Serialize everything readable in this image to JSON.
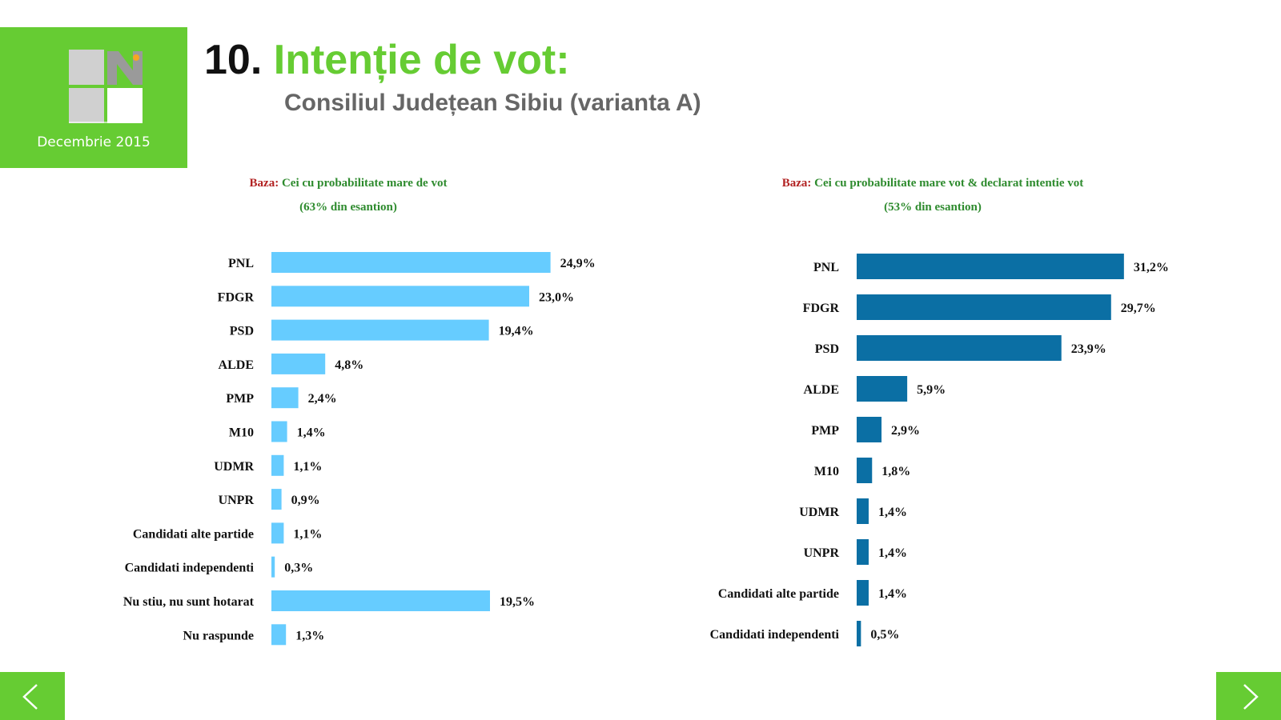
{
  "header": {
    "number": "10.",
    "title": "Intenție de vot:",
    "subtitle": "Consiliul Județean Sibiu (varianta A)",
    "date": "Decembrie 2015"
  },
  "colors": {
    "accent": "#66cc33",
    "left_bar": "#66ccff",
    "right_bar": "#0b6fa4",
    "base_label": "#b22222",
    "base_text": "#2e8b2e"
  },
  "chart_data": [
    {
      "type": "bar",
      "orientation": "horizontal",
      "base_label": "Baza:",
      "base_text": "Cei cu probabilitate mare de vot",
      "base_sub": "(63% din esantion)",
      "categories": [
        "PNL",
        "FDGR",
        "PSD",
        "ALDE",
        "PMP",
        "M10",
        "UDMR",
        "UNPR",
        "Candidati alte partide",
        "Candidati independenti",
        "Nu stiu, nu sunt hotarat",
        "Nu raspunde"
      ],
      "values": [
        24.9,
        23.0,
        19.4,
        4.8,
        2.4,
        1.4,
        1.1,
        0.9,
        1.1,
        0.3,
        19.5,
        1.3
      ],
      "labels": [
        "24,9%",
        "23,0%",
        "19,4%",
        "4,8%",
        "2,4%",
        "1,4%",
        "1,1%",
        "0,9%",
        "1,1%",
        "0,3%",
        "19,5%",
        "1,3%"
      ],
      "unit": "%"
    },
    {
      "type": "bar",
      "orientation": "horizontal",
      "base_label": "Baza:",
      "base_text": "Cei cu probabilitate mare vot & declarat intentie vot",
      "base_sub": "(53% din esantion)",
      "categories": [
        "PNL",
        "FDGR",
        "PSD",
        "ALDE",
        "PMP",
        "M10",
        "UDMR",
        "UNPR",
        "Candidati alte partide",
        "Candidati independenti"
      ],
      "values": [
        31.2,
        29.7,
        23.9,
        5.9,
        2.9,
        1.8,
        1.4,
        1.4,
        1.4,
        0.5
      ],
      "labels": [
        "31,2%",
        "29,7%",
        "23,9%",
        "5,9%",
        "2,9%",
        "1,8%",
        "1,4%",
        "1,4%",
        "1,4%",
        "0,5%"
      ],
      "unit": "%"
    }
  ],
  "nav": {
    "prev": "prev-arrow-icon",
    "next": "next-arrow-icon"
  }
}
